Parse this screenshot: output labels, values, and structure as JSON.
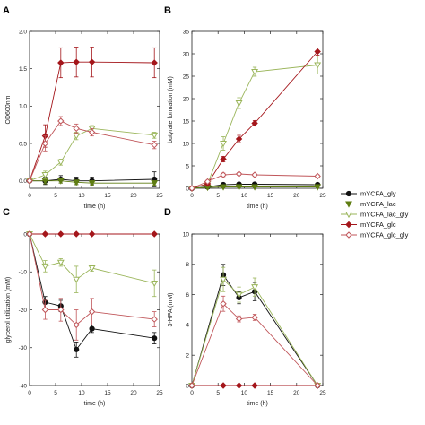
{
  "panels_letters": [
    "A",
    "B",
    "C",
    "D"
  ],
  "legend": {
    "entries": [
      {
        "label": "mYCFA_gly",
        "color": "#111111",
        "marker": "circle",
        "filled": true
      },
      {
        "label": "mYCFA_lac",
        "color": "#5f7d12",
        "marker": "triangle-down",
        "filled": true
      },
      {
        "label": "mYCFA_lac_gly",
        "color": "#9ab55a",
        "marker": "triangle-down",
        "filled": false
      },
      {
        "label": "mYCFA_glc",
        "color": "#a4161b",
        "marker": "diamond",
        "filled": true
      },
      {
        "label": "mYCFA_glc_gly",
        "color": "#c0565a",
        "marker": "diamond",
        "filled": false
      }
    ]
  },
  "chart_data": [
    {
      "type": "line",
      "panel": "A",
      "xlabel": "time (h)",
      "ylabel": "OD600nm",
      "xlim": [
        0,
        25
      ],
      "ylim": [
        -0.1,
        2.0
      ],
      "xticks": [
        0,
        5,
        10,
        15,
        20,
        25
      ],
      "yticks": [
        0.0,
        0.5,
        1.0,
        1.5,
        2.0
      ],
      "ytick_labels": [
        "0.0",
        "0.5",
        "1.0",
        "1.5",
        "2.0"
      ],
      "series": [
        {
          "name": "mYCFA_gly",
          "x": [
            0,
            3,
            6,
            9,
            12,
            24
          ],
          "y": [
            0.0,
            0.0,
            0.02,
            0.0,
            0.0,
            0.02
          ],
          "err": [
            0.02,
            0.05,
            0.05,
            0.05,
            0.05,
            0.1
          ]
        },
        {
          "name": "mYCFA_lac",
          "x": [
            0,
            3,
            6,
            9,
            12,
            24
          ],
          "y": [
            0.0,
            0.0,
            0.0,
            -0.02,
            -0.03,
            -0.03
          ],
          "err": [
            0.02,
            0.04,
            0.03,
            0.03,
            0.03,
            0.03
          ]
        },
        {
          "name": "mYCFA_lac_gly",
          "x": [
            0,
            3,
            6,
            9,
            12,
            24
          ],
          "y": [
            0.0,
            0.08,
            0.25,
            0.6,
            0.7,
            0.61
          ],
          "err": [
            0.02,
            0.05,
            0.04,
            0.05,
            0.04,
            0.04
          ]
        },
        {
          "name": "mYCFA_glc",
          "x": [
            0,
            3,
            6,
            9,
            12,
            24
          ],
          "y": [
            0.0,
            0.6,
            1.58,
            1.59,
            1.59,
            1.58
          ],
          "err": [
            0.02,
            0.15,
            0.2,
            0.2,
            0.2,
            0.2
          ]
        },
        {
          "name": "mYCFA_glc_gly",
          "x": [
            0,
            3,
            6,
            9,
            12,
            24
          ],
          "y": [
            0.0,
            0.5,
            0.8,
            0.7,
            0.65,
            0.48
          ],
          "err": [
            0.02,
            0.1,
            0.06,
            0.06,
            0.05,
            0.05
          ]
        }
      ]
    },
    {
      "type": "line",
      "panel": "B",
      "xlabel": "time (h)",
      "ylabel": "butyrate formation (mM)",
      "xlim": [
        0,
        25
      ],
      "ylim": [
        0,
        35
      ],
      "xticks": [
        0,
        5,
        10,
        15,
        20,
        25
      ],
      "yticks": [
        0,
        5,
        10,
        15,
        20,
        25,
        30,
        35
      ],
      "ytick_labels": [
        "0",
        "5",
        "10",
        "15",
        "20",
        "25",
        "30",
        "35"
      ],
      "series": [
        {
          "name": "mYCFA_gly",
          "x": [
            0,
            3,
            6,
            9,
            12,
            24
          ],
          "y": [
            0.0,
            0.3,
            0.8,
            0.9,
            0.9,
            0.8
          ],
          "err": [
            0.1,
            0.2,
            0.2,
            0.2,
            0.2,
            0.2
          ]
        },
        {
          "name": "mYCFA_lac",
          "x": [
            0,
            3,
            6,
            9,
            12,
            24
          ],
          "y": [
            0.0,
            0.2,
            0.3,
            0.3,
            0.3,
            0.3
          ],
          "err": [
            0.1,
            0.1,
            0.1,
            0.1,
            0.1,
            0.1
          ]
        },
        {
          "name": "mYCFA_lac_gly",
          "x": [
            0,
            3,
            6,
            9,
            12,
            24
          ],
          "y": [
            0.0,
            1.0,
            10.0,
            19.0,
            26.0,
            27.5
          ],
          "err": [
            0.1,
            0.3,
            1.5,
            1.2,
            1.0,
            2.0
          ]
        },
        {
          "name": "mYCFA_glc",
          "x": [
            0,
            3,
            6,
            9,
            12,
            24
          ],
          "y": [
            0.0,
            1.0,
            6.5,
            11.0,
            14.5,
            30.5
          ],
          "err": [
            0.1,
            0.3,
            0.6,
            0.8,
            0.6,
            0.8
          ]
        },
        {
          "name": "mYCFA_glc_gly",
          "x": [
            0,
            3,
            6,
            9,
            12,
            24
          ],
          "y": [
            0.0,
            1.5,
            3.0,
            3.2,
            3.0,
            2.7
          ],
          "err": [
            0.1,
            0.3,
            0.4,
            0.3,
            0.3,
            0.3
          ]
        }
      ]
    },
    {
      "type": "line",
      "panel": "C",
      "xlabel": "time (h)",
      "ylabel": "glycerol utilization (mM)",
      "xlim": [
        0,
        25
      ],
      "ylim": [
        -40,
        0
      ],
      "xticks": [
        0,
        5,
        10,
        15,
        20,
        25
      ],
      "yticks": [
        -40,
        -30,
        -20,
        -10,
        0
      ],
      "ytick_labels": [
        "-40",
        "-30",
        "-20",
        "-10",
        "0"
      ],
      "series": [
        {
          "name": "mYCFA_gly",
          "x": [
            0,
            3,
            6,
            9,
            12,
            24
          ],
          "y": [
            0,
            -18,
            -19,
            -30.5,
            -25,
            -27.5
          ],
          "err": [
            0.3,
            1.5,
            1.5,
            2.0,
            1.0,
            1.5
          ]
        },
        {
          "name": "mYCFA_lac_gly",
          "x": [
            0,
            3,
            6,
            9,
            12,
            24
          ],
          "y": [
            0,
            -8.5,
            -7.5,
            -12,
            -9,
            -13
          ],
          "err": [
            0.3,
            1.5,
            1.0,
            3.5,
            0.8,
            3.5
          ]
        },
        {
          "name": "mYCFA_glc",
          "x": [
            0,
            3,
            6,
            9,
            12,
            24
          ],
          "y": [
            0,
            0,
            0,
            0,
            0,
            0
          ],
          "err": [
            0,
            0,
            0,
            0,
            0,
            0
          ]
        },
        {
          "name": "mYCFA_glc_gly",
          "x": [
            0,
            3,
            6,
            9,
            12,
            24
          ],
          "y": [
            0,
            -20,
            -20,
            -24,
            -20.5,
            -22.5
          ],
          "err": [
            0.3,
            2.5,
            3.0,
            4.0,
            3.5,
            2.0
          ]
        }
      ]
    },
    {
      "type": "line",
      "panel": "D",
      "xlabel": "time (h)",
      "ylabel": "3-HPA (mM)",
      "xlim": [
        0,
        25
      ],
      "ylim": [
        0,
        10
      ],
      "xticks": [
        0,
        5,
        10,
        15,
        20,
        25
      ],
      "yticks": [
        0,
        2,
        4,
        6,
        8,
        10
      ],
      "ytick_labels": [
        "0",
        "2",
        "4",
        "6",
        "8",
        "10"
      ],
      "series": [
        {
          "name": "mYCFA_gly",
          "x": [
            0,
            6,
            9,
            12,
            24
          ],
          "y": [
            0,
            7.3,
            5.8,
            6.2,
            0
          ],
          "err": [
            0,
            0.7,
            0.4,
            0.6,
            0
          ]
        },
        {
          "name": "mYCFA_lac_gly",
          "x": [
            0,
            6,
            9,
            12,
            24
          ],
          "y": [
            0,
            7.0,
            6.0,
            6.5,
            0
          ],
          "err": [
            0,
            0.8,
            0.5,
            0.6,
            0
          ]
        },
        {
          "name": "mYCFA_glc",
          "x": [
            0,
            6,
            9,
            12,
            24
          ],
          "y": [
            0,
            0,
            0,
            0,
            0
          ],
          "err": [
            0,
            0,
            0,
            0,
            0
          ]
        },
        {
          "name": "mYCFA_glc_gly",
          "x": [
            0,
            6,
            9,
            12,
            24
          ],
          "y": [
            0,
            5.4,
            4.4,
            4.5,
            0
          ],
          "err": [
            0,
            0.5,
            0.2,
            0.2,
            0
          ]
        }
      ]
    }
  ]
}
